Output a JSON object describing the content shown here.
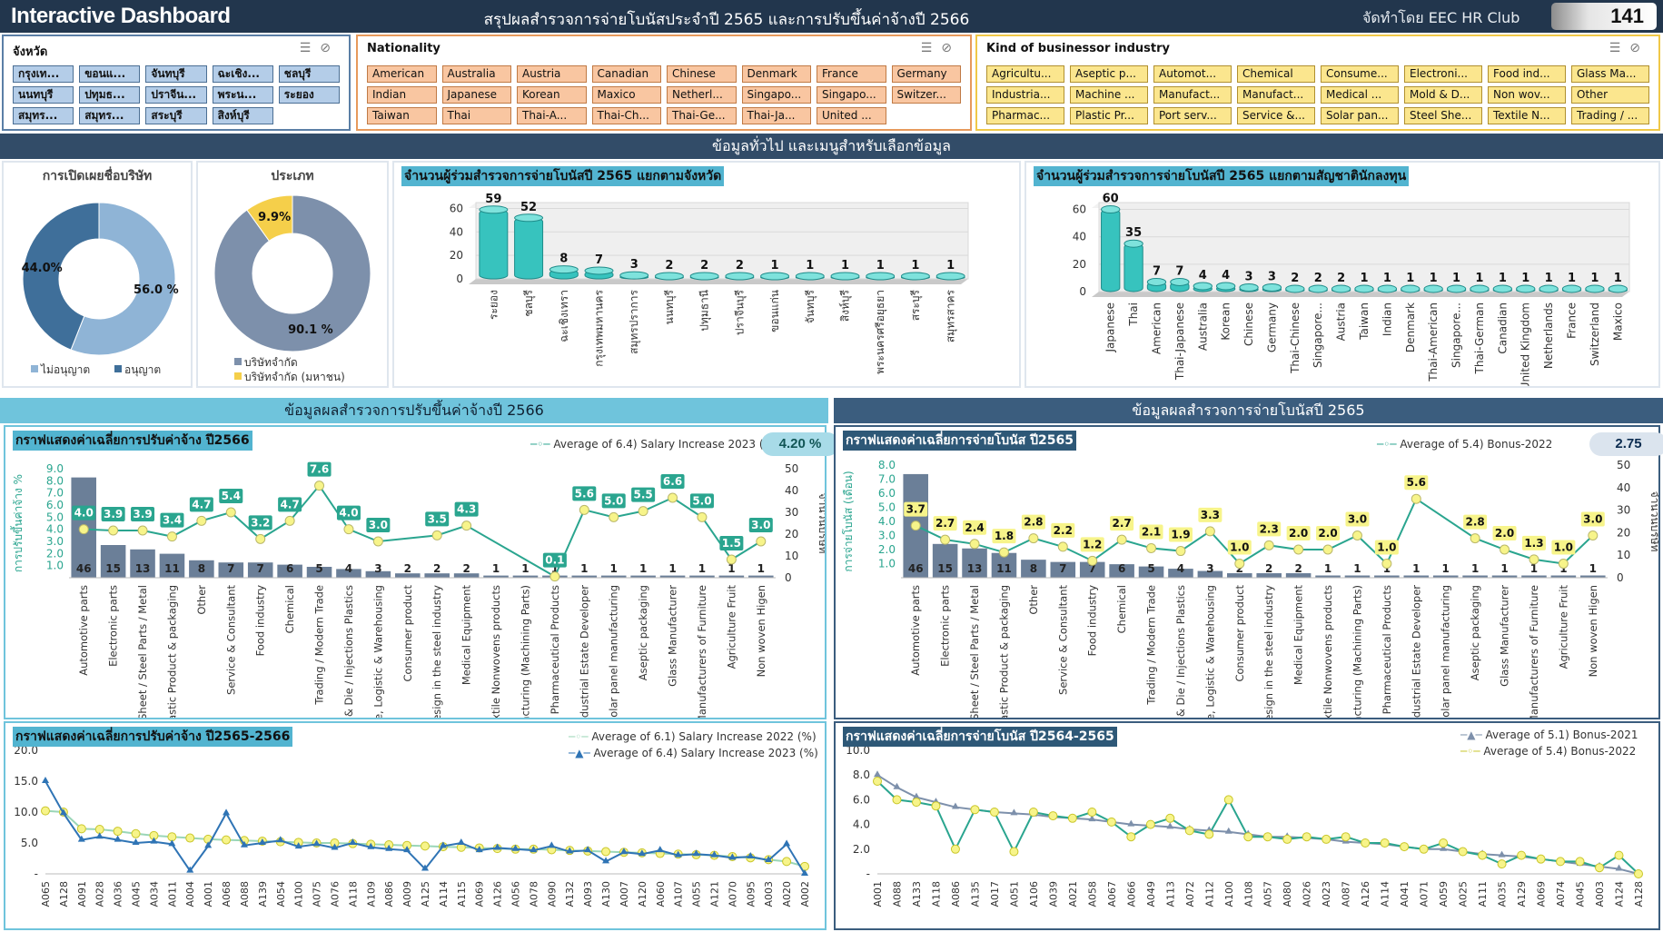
{
  "header": {
    "app_title": "Interactive Dashboard",
    "report_title": "สรุปผลสำรวจการจ่ายโบนัสประจำปี 2565 และการปรับขึ้นค่าจ้างปี 2566",
    "credit": "จัดทำโดย EEC HR Club",
    "count": "141"
  },
  "slicers": {
    "province": {
      "title": "จังหวัด",
      "items": [
        "กรุงเท...",
        "ขอนแ...",
        "จันทบุรี",
        "ฉะเชิง...",
        "ชลบุรี",
        "นนทบุรี",
        "ปทุมธ...",
        "ปราจีน...",
        "พระน...",
        "ระยอง",
        "สมุทร...",
        "สมุทร...",
        "สระบุรี",
        "สิงห์บุรี"
      ]
    },
    "nationality": {
      "title": "Nationality",
      "items": [
        "American",
        "Australia",
        "Austria",
        "Canadian",
        "Chinese",
        "Denmark",
        "France",
        "Germany",
        "Indian",
        "Japanese",
        "Korean",
        "Maxico",
        "Netherl...",
        "Singapo...",
        "Singapo...",
        "Switzer...",
        "Taiwan",
        "Thai",
        "Thai-A...",
        "Thai-Ch...",
        "Thai-Ge...",
        "Thai-Ja...",
        "United ..."
      ]
    },
    "industry": {
      "title": "Kind of businessor industry",
      "items": [
        "Agricultu...",
        "Aseptic p...",
        "Automot...",
        "Chemical",
        "Consume...",
        "Electroni...",
        "Food ind...",
        "Glass Ma...",
        "Industria...",
        "Machine ...",
        "Manufact...",
        "Manufact...",
        "Medical ...",
        "Mold & D...",
        "Non wov...",
        "Other",
        "Pharmac...",
        "Plastic Pr...",
        "Port serv...",
        "Service &...",
        "Solar pan...",
        "Steel She...",
        "Textile N...",
        "Trading / ..."
      ]
    }
  },
  "banners": {
    "general": "ข้อมูลทั่วไป และเมนูสำหรับเลือกข้อมูล",
    "salary": "ข้อมูลผลสำรวจการปรับขึ้นค่าจ้างปี 2566",
    "bonus": "ข้อมูลผลสำรวจการจ่ายโบนัสปี 2565"
  },
  "colors": {
    "navy": "#22364d",
    "teal": "#3dc7c0",
    "bar_gray": "#6b7f98",
    "yellow_marker": "#f7f48a",
    "line_green": "#2aa58f",
    "blue": "#2f74b5"
  },
  "chart_data": [
    {
      "id": "disclosure-donut",
      "type": "pie",
      "title": "การเปิดเผยชื่อบริษัท",
      "categories": [
        "ไม่อนุญาต",
        "อนุญาต"
      ],
      "values": [
        56.0,
        44.0
      ],
      "labels": [
        "56.0 %",
        "44.0%"
      ],
      "colors": [
        "#8fb4d6",
        "#3f6f9a"
      ]
    },
    {
      "id": "type-donut",
      "type": "pie",
      "title": "ประเภท",
      "categories": [
        "บริษัทจำกัด",
        "บริษัทจำกัด (มหาชน)"
      ],
      "values": [
        90.1,
        9.9
      ],
      "labels": [
        "90.1 %",
        "9.9%"
      ],
      "colors": [
        "#7d90ab",
        "#f5cf4a"
      ]
    },
    {
      "id": "province-bar",
      "type": "bar",
      "title": "จำนวนผู้ร่วมสำรวจการจ่ายโบนัสปี 2565 แยกตามจังหวัด",
      "categories": [
        "ระยอง",
        "ชลบุรี",
        "ฉะเชิงเทรา",
        "กรุงเทพมหานคร",
        "สมุทรปราการ",
        "นนทบุรี",
        "ปทุมธานี",
        "ปราจีนบุรี",
        "ขอนแก่น",
        "จันทบุรี",
        "สิงห์บุรี",
        "พระนครศรีอยุธยา",
        "สระบุรี",
        "สมุทรสาคร"
      ],
      "values": [
        59,
        52,
        8,
        7,
        3,
        2,
        2,
        2,
        1,
        1,
        1,
        1,
        1,
        1
      ],
      "yticks": [
        0,
        20,
        40,
        60
      ],
      "ylim": [
        0,
        65
      ]
    },
    {
      "id": "nationality-bar",
      "type": "bar",
      "title": "จำนวนผู้ร่วมสำรวจการจ่ายโบนัสปี 2565 แยกตามสัญชาตินักลงทุน",
      "categories": [
        "Japanese",
        "Thai",
        "American",
        "Thai-Japanese",
        "Australia",
        "Korean",
        "Chinese",
        "Germany",
        "Thai-Chinese",
        "Singapore...",
        "Austria",
        "Taiwan",
        "Indian",
        "Denmark",
        "Thai-American",
        "Singapore...",
        "Thai-German",
        "Canadian",
        "United Kingdom",
        "Netherlands",
        "France",
        "Switzerland",
        "Maxico"
      ],
      "values": [
        60,
        35,
        7,
        7,
        4,
        4,
        3,
        3,
        2,
        2,
        2,
        1,
        1,
        1,
        1,
        1,
        1,
        1,
        1,
        1,
        1,
        1,
        1
      ],
      "yticks": [
        0,
        20,
        40,
        60
      ],
      "ylim": [
        0,
        65
      ]
    },
    {
      "id": "salary-combo",
      "type": "bar",
      "title": "กราฟแสดงค่าเฉลี่ยการปรับค่าจ้าง ปี2566",
      "legend": "Average of 6.4) Salary Increase 2023 (%)",
      "pill": "4.20 %",
      "ylabel": "การปรับขึ้นค่าจ้าง %",
      "y2label": "จำนวนบริษัท",
      "yticks": [
        "1.0",
        "2.0",
        "3.0",
        "4.0",
        "5.0",
        "6.0",
        "7.0",
        "8.0",
        "9.0"
      ],
      "y2ticks": [
        "0",
        "10",
        "20",
        "30",
        "40",
        "50"
      ],
      "categories": [
        "Automotive parts",
        "Electronic parts",
        "Steel Sheet / Steel Parts / Metal",
        "Plastic Product & packaging",
        "Other",
        "Service & Consultant",
        "Food industry",
        "Chemical",
        "Trading / Modern Trade",
        "Mold & Die / Injections Plastics",
        "Port service, Logistic & Warehousing",
        "Consumer product",
        "Machine design in the steel industry",
        "Medical Equipment",
        "Textile Nonwovens products",
        "Manufacturing (Machining Parts)",
        "Pharmaceutical Products",
        "Industrial Estate Developer",
        "Solar panel manufacturing",
        "Aseptic packaging",
        "Glass Manufacturer",
        "Manufacturers of Furniture",
        "Agriculture Fruit",
        "Non woven Higen"
      ],
      "counts": [
        46,
        15,
        13,
        11,
        8,
        7,
        7,
        6,
        5,
        4,
        3,
        2,
        2,
        2,
        1,
        1,
        1,
        1,
        1,
        1,
        1,
        1,
        1,
        1
      ],
      "values": [
        4.0,
        3.9,
        3.9,
        3.4,
        4.7,
        5.4,
        3.2,
        4.7,
        7.6,
        4.0,
        3.0,
        null,
        3.5,
        4.3,
        null,
        null,
        0.1,
        5.6,
        5.0,
        5.5,
        6.6,
        5.0,
        1.5,
        3.0
      ]
    },
    {
      "id": "bonus-combo",
      "type": "bar",
      "title": "กราฟแสดงค่าเฉลี่ยการจ่ายโบนัส ปี2565",
      "legend": "Average of 5.4) Bonus-2022",
      "pill": "2.75",
      "ylabel": "การจ่ายโบนัส (เดือน)",
      "y2label": "จำนวนบริษัท",
      "yticks": [
        "1.0",
        "2.0",
        "3.0",
        "4.0",
        "5.0",
        "6.0",
        "7.0",
        "8.0"
      ],
      "y2ticks": [
        "0",
        "10",
        "20",
        "30",
        "40",
        "50"
      ],
      "categories": [
        "Automotive parts",
        "Electronic parts",
        "Steel Sheet / Steel Parts / Metal",
        "Plastic Product & packaging",
        "Other",
        "Service & Consultant",
        "Food industry",
        "Chemical",
        "Trading / Modern Trade",
        "Mold & Die / Injections Plastics",
        "Port service, Logistic & Warehousing",
        "Consumer product",
        "Machine design in the steel industry",
        "Medical Equipment",
        "Textile Nonwovens products",
        "Manufacturing (Machining Parts)",
        "Pharmaceutical Products",
        "Industrial Estate Developer",
        "Solar panel manufacturing",
        "Aseptic packaging",
        "Glass Manufacturer",
        "Manufacturers of Furniture",
        "Agriculture Fruit",
        "Non woven Higen"
      ],
      "counts": [
        46,
        15,
        13,
        11,
        8,
        7,
        7,
        6,
        5,
        4,
        3,
        2,
        2,
        2,
        1,
        1,
        1,
        1,
        1,
        1,
        1,
        1,
        1,
        1
      ],
      "values": [
        3.7,
        2.7,
        2.4,
        1.8,
        2.8,
        2.2,
        1.2,
        2.7,
        2.1,
        1.9,
        3.3,
        1.0,
        2.3,
        2.0,
        2.0,
        3.0,
        1.0,
        5.6,
        null,
        2.8,
        2.0,
        1.3,
        1.0,
        3.0
      ]
    },
    {
      "id": "salary-trend",
      "type": "line",
      "title": "กราฟแสดงค่าเฉลี่ยการปรับค่าจ้าง ปี2565-2566",
      "series": [
        {
          "name": "Average of 6.1) Salary Increase 2022 (%)"
        },
        {
          "name": "Average of 6.4) Salary Increase 2023 (%)"
        }
      ],
      "yticks": [
        "-",
        "5.0",
        "10.0",
        "15.0",
        "20.0"
      ],
      "ylim": [
        0,
        20
      ],
      "x_tick_labels": [
        "A065",
        "A128",
        "A091",
        "A028",
        "A036",
        "A045",
        "A034",
        "A011",
        "A004",
        "A001",
        "A068",
        "A088",
        "A139",
        "A054",
        "A100",
        "A075",
        "A076",
        "A118",
        "A109",
        "A086",
        "A009",
        "A125",
        "A114",
        "A115",
        "A069",
        "A126",
        "A056",
        "A078",
        "A090",
        "A132",
        "A093",
        "A130",
        "A007",
        "A120",
        "A060",
        "A107",
        "A055",
        "A121",
        "A070",
        "A095",
        "A003",
        "A020",
        "A002"
      ],
      "series_2022": [
        10.2,
        10.0,
        7.3,
        7.2,
        6.9,
        6.5,
        6.2,
        6.0,
        5.8,
        5.6,
        5.5,
        5.4,
        5.3,
        5.2,
        5.1,
        5.0,
        5.0,
        4.9,
        4.8,
        4.7,
        4.6,
        4.5,
        4.4,
        4.3,
        4.2,
        4.1,
        4.0,
        4.0,
        3.9,
        3.8,
        3.7,
        3.6,
        3.5,
        3.4,
        3.3,
        3.2,
        3.1,
        3.0,
        2.8,
        2.6,
        2.3,
        2.0,
        1.2
      ],
      "series_2023": [
        15.0,
        9.8,
        5.5,
        6.0,
        5.5,
        5.0,
        5.2,
        4.8,
        0.5,
        4.5,
        9.8,
        4.6,
        5.0,
        5.4,
        4.4,
        4.8,
        4.2,
        5.0,
        4.3,
        4.0,
        3.8,
        0.8,
        4.5,
        5.0,
        3.8,
        4.2,
        4.0,
        3.8,
        4.5,
        3.6,
        3.8,
        2.0,
        3.5,
        3.2,
        3.8,
        3.0,
        3.2,
        3.0,
        2.6,
        2.8,
        2.2,
        4.8,
        0.0
      ]
    },
    {
      "id": "bonus-trend",
      "type": "line",
      "title": "กราฟแสดงค่าเฉลี่ยการจ่ายโบนัส ปี2564-2565",
      "series": [
        {
          "name": "Average of 5.1) Bonus-2021"
        },
        {
          "name": "Average of 5.4) Bonus-2022"
        }
      ],
      "yticks": [
        "-",
        "2.0",
        "4.0",
        "6.0",
        "8.0",
        "10.0"
      ],
      "ylim": [
        0,
        10
      ],
      "x_tick_labels": [
        "A001",
        "A088",
        "A133",
        "A118",
        "A086",
        "A135",
        "A017",
        "A051",
        "A106",
        "A039",
        "A021",
        "A058",
        "A067",
        "A066",
        "A049",
        "A113",
        "A072",
        "A112",
        "A100",
        "A108",
        "A057",
        "A080",
        "A026",
        "A023",
        "A087",
        "A126",
        "A114",
        "A041",
        "A071",
        "A059",
        "A025",
        "A111",
        "A035",
        "A129",
        "A069",
        "A074",
        "A045",
        "A003",
        "A124",
        "A128"
      ],
      "series_2021": [
        8.0,
        7.0,
        6.2,
        5.8,
        5.4,
        5.2,
        5.0,
        4.9,
        4.8,
        4.6,
        4.5,
        4.4,
        4.2,
        4.0,
        3.9,
        3.8,
        3.6,
        3.5,
        3.4,
        3.2,
        3.0,
        3.0,
        2.9,
        2.8,
        2.6,
        2.5,
        2.4,
        2.2,
        2.0,
        2.0,
        1.8,
        1.6,
        1.5,
        1.4,
        1.2,
        1.0,
        0.8,
        0.6,
        0.4,
        0.0
      ],
      "series_2022": [
        7.5,
        6.0,
        5.8,
        5.5,
        2.0,
        5.2,
        5.0,
        1.8,
        5.0,
        4.7,
        4.5,
        5.0,
        4.2,
        3.0,
        4.0,
        4.5,
        3.5,
        3.2,
        6.0,
        3.0,
        3.0,
        2.8,
        3.0,
        2.8,
        3.0,
        2.5,
        2.5,
        2.2,
        2.0,
        2.5,
        1.8,
        1.5,
        0.8,
        1.5,
        1.2,
        1.0,
        1.0,
        0.5,
        1.5,
        0.0
      ]
    }
  ]
}
